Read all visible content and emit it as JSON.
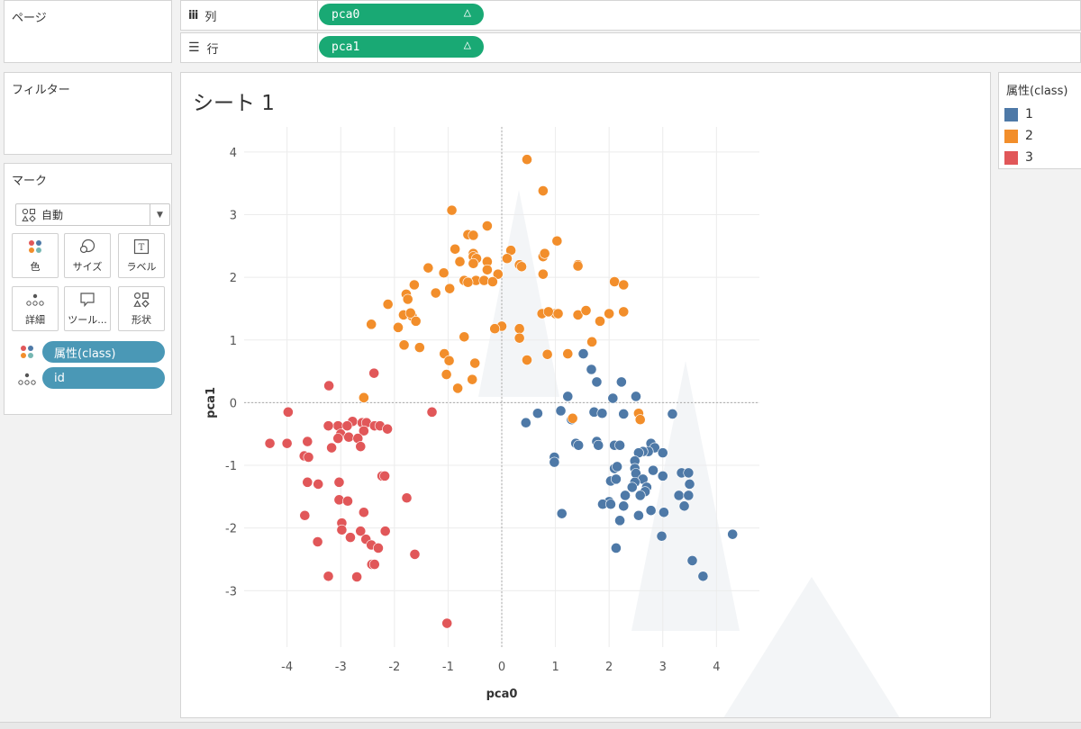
{
  "shelves": {
    "pages_title": "ページ",
    "columns": {
      "label": "列",
      "pill": "pca0",
      "pill_icon": "delta-icon"
    },
    "rows": {
      "label": "行",
      "pill": "pca1",
      "pill_icon": "delta-icon"
    }
  },
  "filters": {
    "title": "フィルター"
  },
  "marks": {
    "title": "マーク",
    "mark_type": "自動",
    "buttons": [
      {
        "label": "色",
        "icon": "color-dots-icon"
      },
      {
        "label": "サイズ",
        "icon": "size-circles-icon"
      },
      {
        "label": "ラベル",
        "icon": "label-text-icon"
      },
      {
        "label": "詳細",
        "icon": "detail-dots-icon"
      },
      {
        "label": "ツール...",
        "icon": "tooltip-bubble-icon"
      },
      {
        "label": "形状",
        "icon": "shape-icon"
      }
    ],
    "fields": [
      {
        "label": "属性(class)",
        "icon": "color-dots-icon"
      },
      {
        "label": "id",
        "icon": "detail-dots-icon"
      }
    ]
  },
  "sheet": {
    "title": "シート 1"
  },
  "legend": {
    "title": "属性(class)",
    "items": [
      {
        "label": "1",
        "color": "#4e79a7"
      },
      {
        "label": "2",
        "color": "#f28e2b"
      },
      {
        "label": "3",
        "color": "#e15759"
      }
    ]
  },
  "chart_data": {
    "type": "scatter",
    "title": "",
    "xlabel": "pca0",
    "ylabel": "pca1",
    "xlim": [
      -4.8,
      4.8
    ],
    "ylim": [
      -3.9,
      4.4
    ],
    "x_ticks": [
      -4,
      -3,
      -2,
      -1,
      0,
      1,
      2,
      3,
      4
    ],
    "y_ticks": [
      -3,
      -2,
      -1,
      0,
      1,
      2,
      3,
      4
    ],
    "grid": true,
    "zero_lines": true,
    "series": [
      {
        "name": "1",
        "color": "#4e79a7",
        "points": [
          [
            1.52,
            0.78
          ],
          [
            1.67,
            0.53
          ],
          [
            1.77,
            0.33
          ],
          [
            2.23,
            0.33
          ],
          [
            2.5,
            0.1
          ],
          [
            1.23,
            0.1
          ],
          [
            2.07,
            0.07
          ],
          [
            1.1,
            -0.13
          ],
          [
            0.67,
            -0.17
          ],
          [
            0.45,
            -0.32
          ],
          [
            1.3,
            -0.27
          ],
          [
            1.72,
            -0.15
          ],
          [
            1.87,
            -0.17
          ],
          [
            2.27,
            -0.18
          ],
          [
            3.18,
            -0.18
          ],
          [
            1.38,
            -0.65
          ],
          [
            1.43,
            -0.68
          ],
          [
            1.77,
            -0.62
          ],
          [
            1.8,
            -0.68
          ],
          [
            2.1,
            -0.68
          ],
          [
            2.2,
            -0.68
          ],
          [
            2.78,
            -0.65
          ],
          [
            2.85,
            -0.72
          ],
          [
            2.73,
            -0.78
          ],
          [
            2.63,
            -0.78
          ],
          [
            2.55,
            -0.8
          ],
          [
            3.0,
            -0.8
          ],
          [
            0.98,
            -0.87
          ],
          [
            0.98,
            -0.95
          ],
          [
            2.48,
            -0.93
          ],
          [
            2.1,
            -1.05
          ],
          [
            2.15,
            -1.02
          ],
          [
            2.48,
            -1.05
          ],
          [
            2.82,
            -1.08
          ],
          [
            3.35,
            -1.12
          ],
          [
            3.48,
            -1.12
          ],
          [
            2.5,
            -1.13
          ],
          [
            3.0,
            -1.17
          ],
          [
            2.03,
            -1.25
          ],
          [
            2.13,
            -1.22
          ],
          [
            2.63,
            -1.22
          ],
          [
            2.48,
            -1.27
          ],
          [
            3.5,
            -1.3
          ],
          [
            2.43,
            -1.35
          ],
          [
            2.7,
            -1.35
          ],
          [
            2.67,
            -1.42
          ],
          [
            2.58,
            -1.48
          ],
          [
            3.3,
            -1.48
          ],
          [
            3.48,
            -1.48
          ],
          [
            2.3,
            -1.48
          ],
          [
            2.0,
            -1.58
          ],
          [
            1.88,
            -1.62
          ],
          [
            2.03,
            -1.62
          ],
          [
            2.27,
            -1.65
          ],
          [
            3.4,
            -1.65
          ],
          [
            2.78,
            -1.72
          ],
          [
            2.55,
            -1.8
          ],
          [
            3.02,
            -1.75
          ],
          [
            1.12,
            -1.77
          ],
          [
            2.2,
            -1.88
          ],
          [
            2.13,
            -2.32
          ],
          [
            2.98,
            -2.13
          ],
          [
            4.3,
            -2.1
          ],
          [
            3.55,
            -2.52
          ],
          [
            3.75,
            -2.77
          ]
        ]
      },
      {
        "name": "2",
        "color": "#f28e2b",
        "points": [
          [
            0.47,
            3.88
          ],
          [
            0.77,
            3.38
          ],
          [
            -0.93,
            3.07
          ],
          [
            -0.27,
            2.82
          ],
          [
            -0.63,
            2.68
          ],
          [
            -0.53,
            2.67
          ],
          [
            1.03,
            2.58
          ],
          [
            -0.87,
            2.45
          ],
          [
            0.17,
            2.43
          ],
          [
            0.77,
            2.33
          ],
          [
            0.8,
            2.38
          ],
          [
            -0.53,
            2.38
          ],
          [
            -0.53,
            2.33
          ],
          [
            -0.47,
            2.3
          ],
          [
            0.1,
            2.3
          ],
          [
            -0.78,
            2.25
          ],
          [
            -0.53,
            2.22
          ],
          [
            -0.27,
            2.25
          ],
          [
            0.33,
            2.2
          ],
          [
            1.42,
            2.2
          ],
          [
            1.42,
            2.18
          ],
          [
            -1.37,
            2.15
          ],
          [
            -0.27,
            2.12
          ],
          [
            -0.07,
            2.05
          ],
          [
            0.77,
            2.05
          ],
          [
            0.37,
            2.17
          ],
          [
            -1.08,
            2.07
          ],
          [
            -0.7,
            1.95
          ],
          [
            -0.48,
            1.95
          ],
          [
            -0.33,
            1.95
          ],
          [
            -0.63,
            1.92
          ],
          [
            -0.17,
            1.93
          ],
          [
            2.1,
            1.93
          ],
          [
            -1.63,
            1.88
          ],
          [
            -1.23,
            1.75
          ],
          [
            -1.78,
            1.73
          ],
          [
            2.27,
            1.88
          ],
          [
            -0.97,
            1.82
          ],
          [
            -1.75,
            1.65
          ],
          [
            -2.12,
            1.57
          ],
          [
            -1.83,
            1.4
          ],
          [
            -1.67,
            1.38
          ],
          [
            -1.7,
            1.43
          ],
          [
            -1.6,
            1.3
          ],
          [
            1.0,
            1.42
          ],
          [
            0.75,
            1.42
          ],
          [
            0.87,
            1.45
          ],
          [
            1.05,
            1.42
          ],
          [
            1.42,
            1.4
          ],
          [
            1.57,
            1.47
          ],
          [
            2.0,
            1.42
          ],
          [
            2.27,
            1.45
          ],
          [
            1.83,
            1.3
          ],
          [
            -2.43,
            1.25
          ],
          [
            -1.93,
            1.2
          ],
          [
            0.0,
            1.22
          ],
          [
            -0.13,
            1.18
          ],
          [
            0.33,
            1.18
          ],
          [
            -0.7,
            1.05
          ],
          [
            0.33,
            1.03
          ],
          [
            1.68,
            0.97
          ],
          [
            -1.82,
            0.92
          ],
          [
            -1.53,
            0.88
          ],
          [
            -1.07,
            0.78
          ],
          [
            -0.98,
            0.67
          ],
          [
            0.47,
            0.68
          ],
          [
            0.85,
            0.77
          ],
          [
            1.23,
            0.78
          ],
          [
            -0.5,
            0.63
          ],
          [
            -0.55,
            0.37
          ],
          [
            -0.82,
            0.23
          ],
          [
            -2.57,
            0.08
          ],
          [
            2.55,
            -0.17
          ],
          [
            2.58,
            -0.27
          ],
          [
            1.32,
            -0.25
          ],
          [
            -1.03,
            0.45
          ]
        ]
      },
      {
        "name": "3",
        "color": "#e15759",
        "points": [
          [
            -2.38,
            0.47
          ],
          [
            -3.22,
            0.27
          ],
          [
            -3.98,
            -0.15
          ],
          [
            -1.3,
            -0.15
          ],
          [
            -2.78,
            -0.3
          ],
          [
            -3.05,
            -0.37
          ],
          [
            -3.23,
            -0.37
          ],
          [
            -2.88,
            -0.37
          ],
          [
            -2.6,
            -0.32
          ],
          [
            -2.52,
            -0.32
          ],
          [
            -2.37,
            -0.37
          ],
          [
            -2.27,
            -0.37
          ],
          [
            -2.13,
            -0.42
          ],
          [
            -2.57,
            -0.45
          ],
          [
            -3.0,
            -0.5
          ],
          [
            -2.85,
            -0.55
          ],
          [
            -3.05,
            -0.57
          ],
          [
            -2.68,
            -0.57
          ],
          [
            -3.62,
            -0.62
          ],
          [
            -4.32,
            -0.65
          ],
          [
            -4.0,
            -0.65
          ],
          [
            -3.17,
            -0.72
          ],
          [
            -2.63,
            -0.7
          ],
          [
            -3.68,
            -0.85
          ],
          [
            -3.6,
            -0.87
          ],
          [
            -2.23,
            -1.17
          ],
          [
            -2.18,
            -1.17
          ],
          [
            -3.62,
            -1.27
          ],
          [
            -3.42,
            -1.3
          ],
          [
            -3.03,
            -1.27
          ],
          [
            -1.77,
            -1.52
          ],
          [
            -3.03,
            -1.55
          ],
          [
            -2.87,
            -1.57
          ],
          [
            -2.57,
            -1.75
          ],
          [
            -3.67,
            -1.8
          ],
          [
            -2.98,
            -1.92
          ],
          [
            -2.98,
            -2.03
          ],
          [
            -2.63,
            -2.05
          ],
          [
            -2.17,
            -2.05
          ],
          [
            -2.82,
            -2.15
          ],
          [
            -2.53,
            -2.18
          ],
          [
            -3.43,
            -2.22
          ],
          [
            -2.43,
            -2.27
          ],
          [
            -2.3,
            -2.32
          ],
          [
            -1.62,
            -2.42
          ],
          [
            -2.42,
            -2.58
          ],
          [
            -2.37,
            -2.58
          ],
          [
            -3.23,
            -2.77
          ],
          [
            -2.7,
            -2.78
          ],
          [
            -1.02,
            -3.52
          ]
        ]
      }
    ]
  }
}
